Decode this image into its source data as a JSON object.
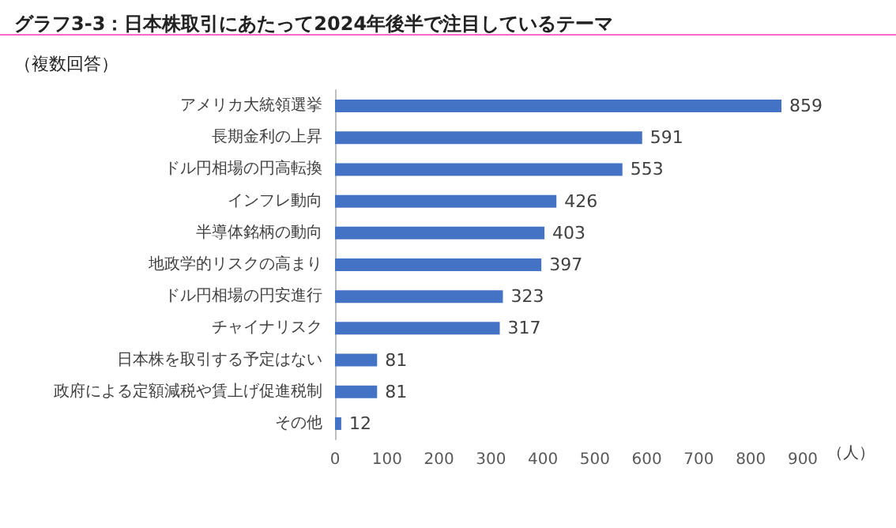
{
  "chart_data": {
    "type": "bar",
    "orientation": "horizontal",
    "title": "グラフ3-3：日本株取引にあたって2024年後半で注目しているテーマ",
    "subtitle": "（複数回答）",
    "xlabel": "（人）",
    "categories": [
      "アメリカ大統領選挙",
      "長期金利の上昇",
      "ドル円相場の円高転換",
      "インフレ動向",
      "半導体銘柄の動向",
      "地政学的リスクの高まり",
      "ドル円相場の円安進行",
      "チャイナリスク",
      "日本株を取引する予定はない",
      "政府による定額減税や賃上げ促進税制",
      "その他"
    ],
    "values": [
      859,
      591,
      553,
      426,
      403,
      397,
      323,
      317,
      81,
      81,
      12
    ],
    "color": "#4472c4",
    "xlim": [
      0,
      900
    ],
    "xticks": [
      0,
      100,
      200,
      300,
      400,
      500,
      600,
      700,
      800,
      900
    ],
    "grid": false,
    "data_labels": true
  }
}
